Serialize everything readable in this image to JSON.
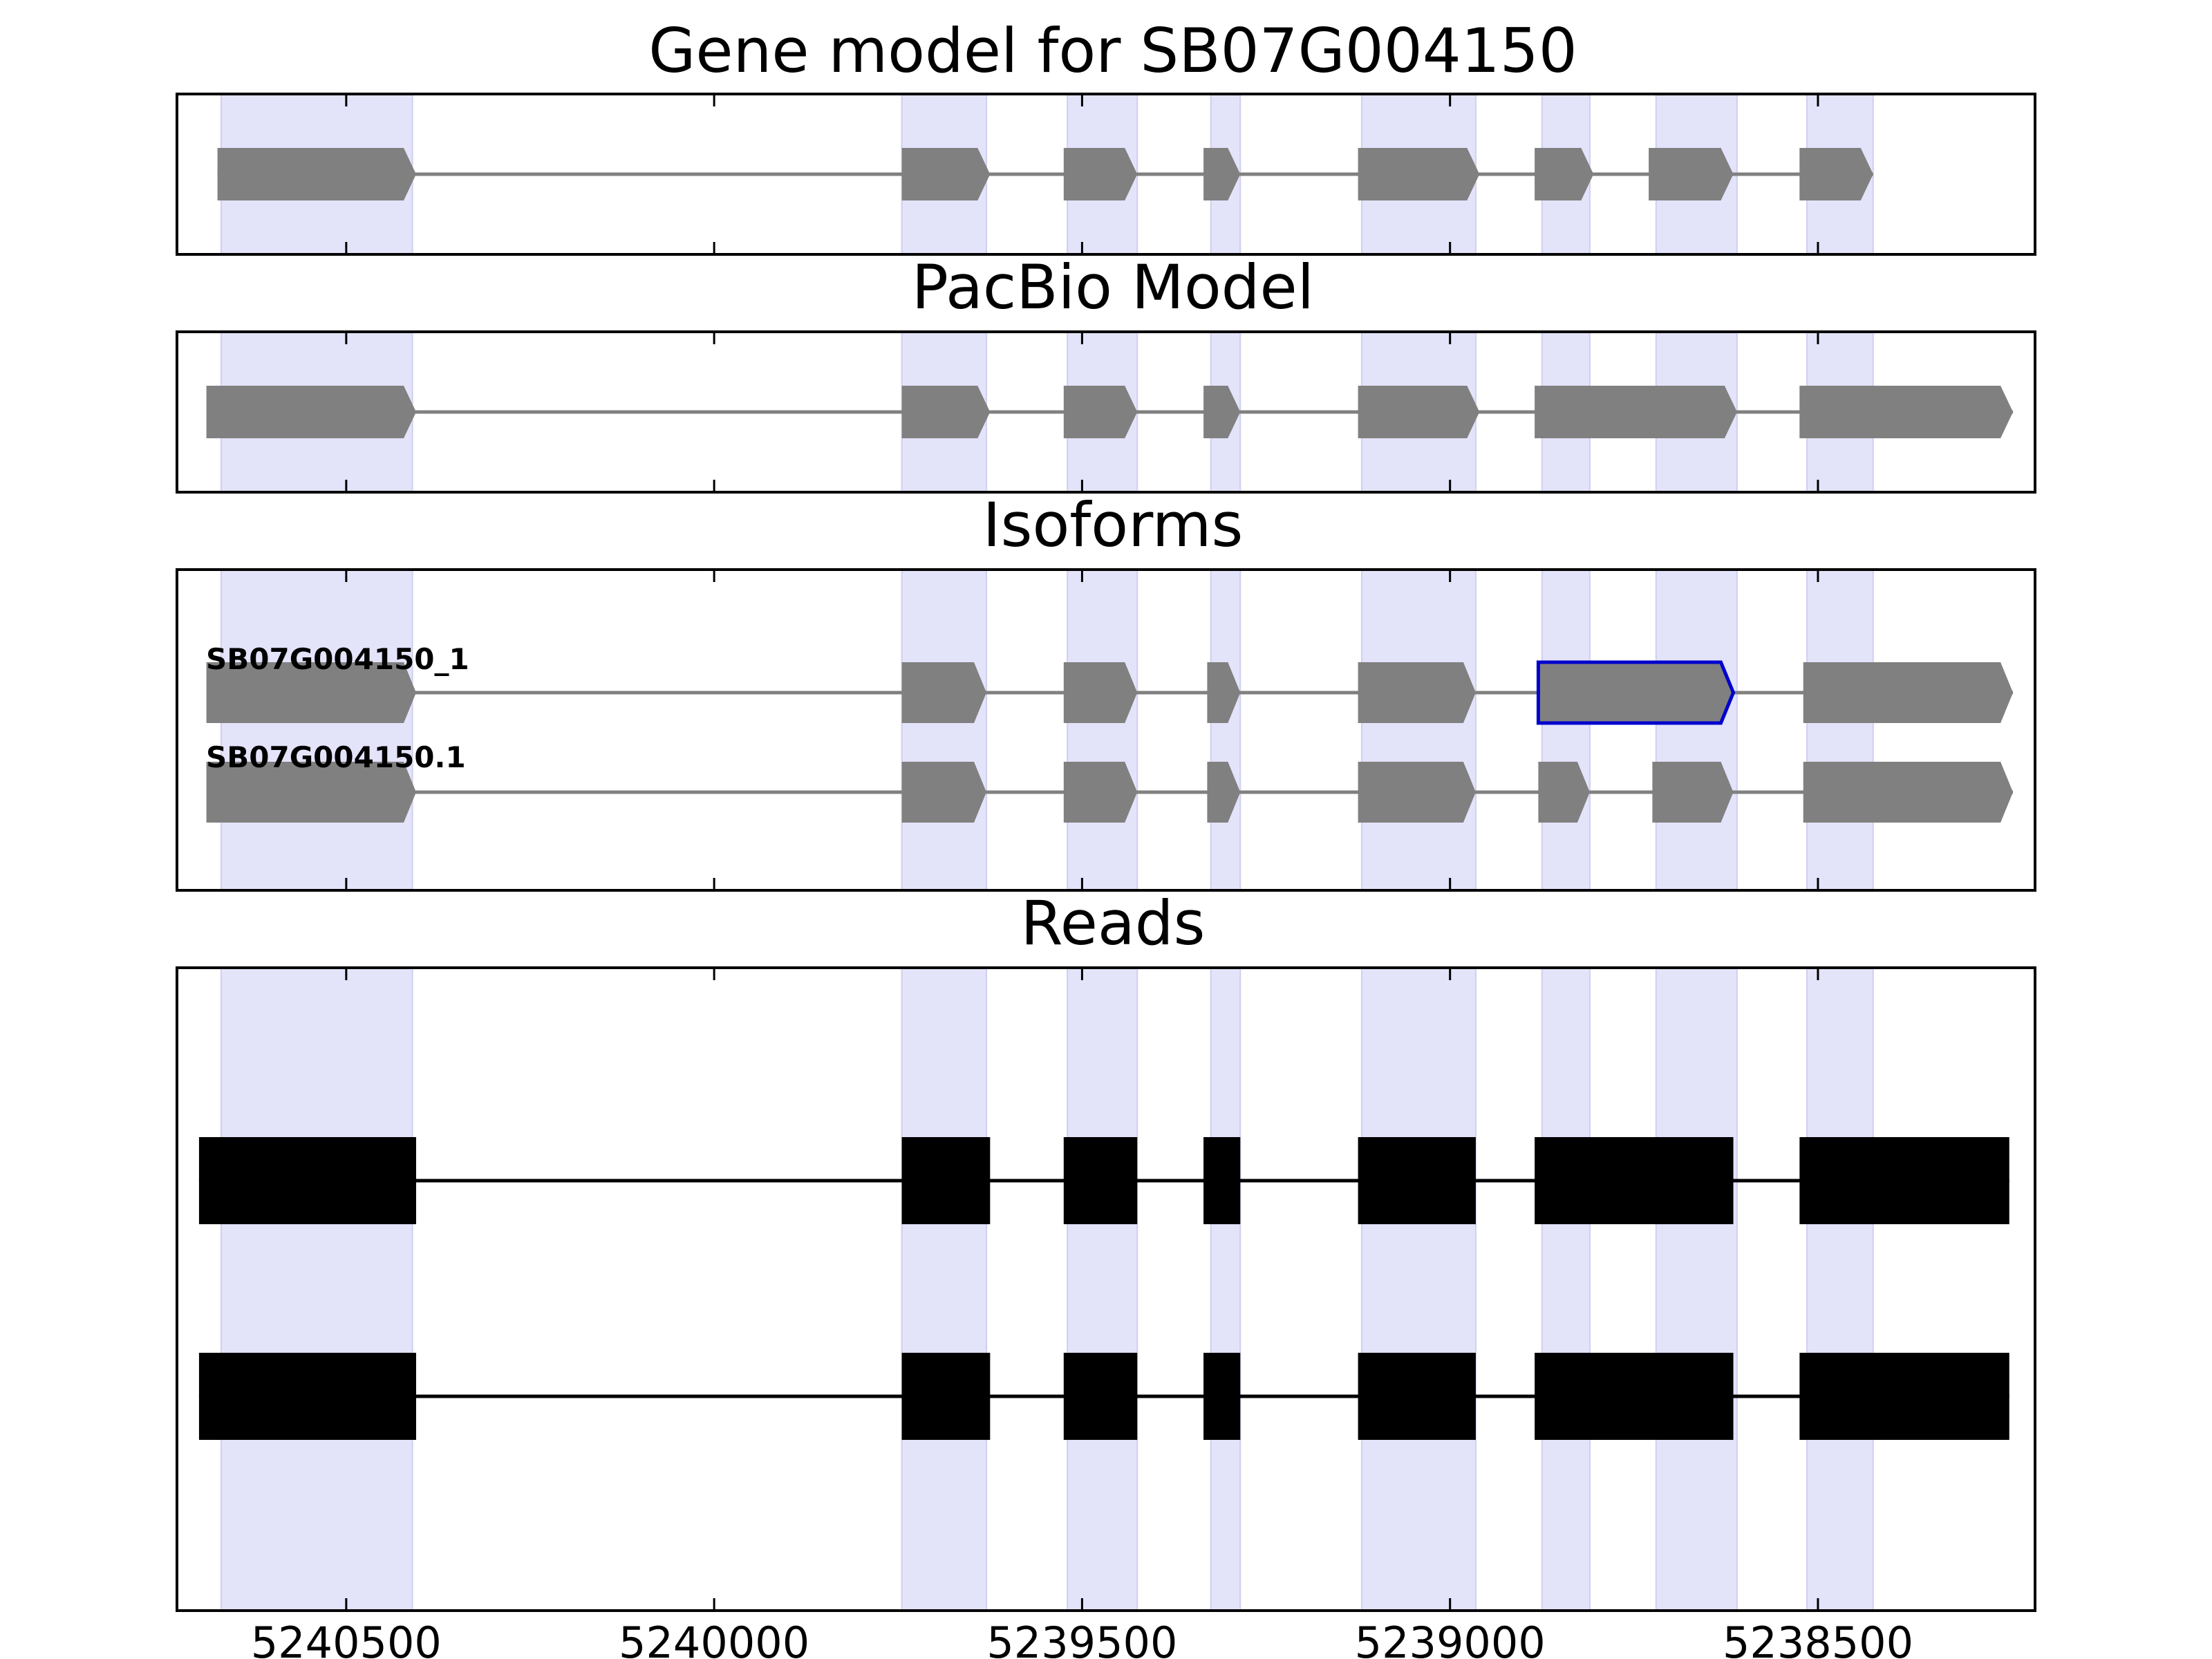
{
  "panels": {
    "gene_model": {
      "title": "Gene model for SB07G004150",
      "features": [
        {
          "start": 5240675,
          "end": 5240405
        },
        {
          "start": 5239745,
          "end": 5239625
        },
        {
          "start": 5239525,
          "end": 5239425
        },
        {
          "start": 5239335,
          "end": 5239285
        },
        {
          "start": 5239125,
          "end": 5238960
        },
        {
          "start": 5238885,
          "end": 5238805
        },
        {
          "start": 5238730,
          "end": 5238615
        },
        {
          "start": 5238525,
          "end": 5238425
        }
      ]
    },
    "pacbio": {
      "title": "PacBio Model",
      "features": [
        {
          "start": 5240690,
          "end": 5240405
        },
        {
          "start": 5239745,
          "end": 5239625
        },
        {
          "start": 5239525,
          "end": 5239425
        },
        {
          "start": 5239335,
          "end": 5239285
        },
        {
          "start": 5239125,
          "end": 5238960
        },
        {
          "start": 5238885,
          "end": 5238610
        },
        {
          "start": 5238525,
          "end": 5238235
        }
      ]
    },
    "isoforms": {
      "title": "Isoforms",
      "items": [
        {
          "name": "SB07G004150_1",
          "features": [
            {
              "start": 5240690,
              "end": 5240405
            },
            {
              "start": 5239745,
              "end": 5239630
            },
            {
              "start": 5239525,
              "end": 5239425
            },
            {
              "start": 5239330,
              "end": 5239285
            },
            {
              "start": 5239125,
              "end": 5238965
            },
            {
              "start": 5238880,
              "end": 5238615,
              "highlight": true
            },
            {
              "start": 5238520,
              "end": 5238235
            }
          ]
        },
        {
          "name": "SB07G004150.1",
          "features": [
            {
              "start": 5240690,
              "end": 5240405
            },
            {
              "start": 5239745,
              "end": 5239630
            },
            {
              "start": 5239525,
              "end": 5239425
            },
            {
              "start": 5239330,
              "end": 5239285
            },
            {
              "start": 5239125,
              "end": 5238965
            },
            {
              "start": 5238880,
              "end": 5238810
            },
            {
              "start": 5238725,
              "end": 5238615
            },
            {
              "start": 5238520,
              "end": 5238235
            }
          ]
        }
      ]
    },
    "reads": {
      "title": "Reads",
      "items": [
        {
          "blocks": [
            {
              "start": 5240700,
              "end": 5240405
            },
            {
              "start": 5239745,
              "end": 5239625
            },
            {
              "start": 5239525,
              "end": 5239425
            },
            {
              "start": 5239335,
              "end": 5239285
            },
            {
              "start": 5239125,
              "end": 5238965
            },
            {
              "start": 5238885,
              "end": 5238615
            },
            {
              "start": 5238525,
              "end": 5238240
            }
          ]
        },
        {
          "blocks": [
            {
              "start": 5240700,
              "end": 5240405
            },
            {
              "start": 5239745,
              "end": 5239625
            },
            {
              "start": 5239525,
              "end": 5239425
            },
            {
              "start": 5239335,
              "end": 5239285
            },
            {
              "start": 5239125,
              "end": 5238965
            },
            {
              "start": 5238885,
              "end": 5238615
            },
            {
              "start": 5238525,
              "end": 5238240
            }
          ]
        }
      ]
    }
  },
  "shaded_regions": [
    {
      "start": 5240670,
      "end": 5240410
    },
    {
      "start": 5239745,
      "end": 5239630
    },
    {
      "start": 5239520,
      "end": 5239425
    },
    {
      "start": 5239325,
      "end": 5239285
    },
    {
      "start": 5239120,
      "end": 5238965
    },
    {
      "start": 5238875,
      "end": 5238810
    },
    {
      "start": 5238720,
      "end": 5238610
    },
    {
      "start": 5238515,
      "end": 5238425
    }
  ],
  "axis": {
    "xlim": [
      5240730,
      5238205
    ],
    "ticks": [
      5240500,
      5240000,
      5239500,
      5239000,
      5238500
    ],
    "tick_labels": [
      "5240500",
      "5240000",
      "5239500",
      "5239000",
      "5238500"
    ]
  },
  "colors": {
    "shade": "#e3e3fa",
    "feature": "#808080",
    "highlight_edge": "#0000cc",
    "read": "#000000",
    "intron": "#808080",
    "read_line": "#000000",
    "frame": "#000000"
  }
}
